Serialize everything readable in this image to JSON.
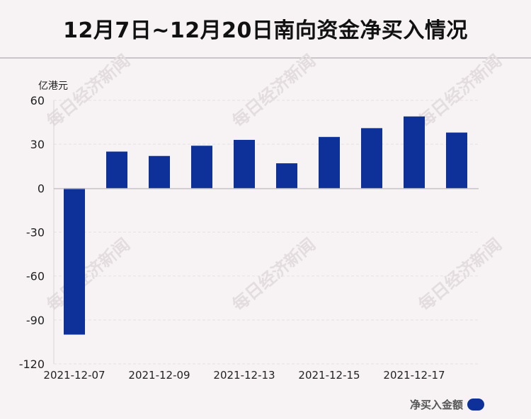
{
  "title": "12月7日~12月20日南向资金净买入情况",
  "watermark": "每日经济新闻",
  "colors": {
    "bar": "#0d3198",
    "background": "#f7f3f5"
  },
  "chart_data": {
    "type": "bar",
    "title": "12月7日~12月20日南向资金净买入情况",
    "ylabel": "亿港元",
    "ylim": [
      -120,
      60
    ],
    "yticks": [
      60,
      30,
      0,
      -30,
      -60,
      -90,
      -120
    ],
    "grid": true,
    "legend_position": "bottom-right",
    "x_tick_labels": [
      "2021-12-07",
      "2021-12-09",
      "2021-12-13",
      "2021-12-15",
      "2021-12-17"
    ],
    "series": [
      {
        "name": "净买入金额",
        "values": [
          -100,
          25,
          22,
          29,
          33,
          17,
          35,
          41,
          49,
          38
        ]
      }
    ]
  }
}
